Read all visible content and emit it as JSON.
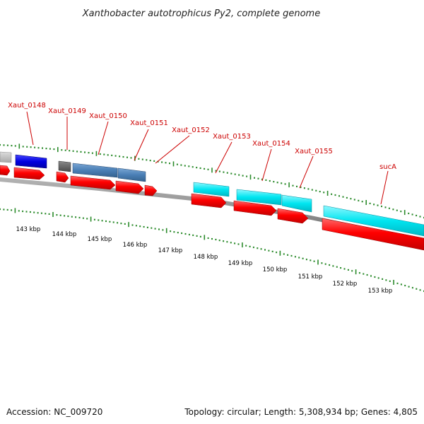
{
  "title": "Xanthobacter autotrophicus Py2, complete genome",
  "accession": "Accession: NC_009720",
  "summary": "Topology: circular; Length: 5,308,934 bp; Genes: 4,805",
  "colors": {
    "label": "#cc0000",
    "backbone": "#7a7a7a",
    "tick": "#2a8a2a",
    "cds_red": "#ff0000",
    "feature_cyan": "#00e5f0",
    "feature_blue": "#0000e0",
    "feature_steel": "#4a7fb5",
    "feature_gray": "#606060",
    "feature_lightgray": "#b8b8b8"
  },
  "scale_labels": [
    "143 kbp",
    "144 kbp",
    "145 kbp",
    "146 kbp",
    "147 kbp",
    "148 kbp",
    "149 kbp",
    "150 kbp",
    "151 kbp",
    "152 kbp",
    "153 kbp"
  ],
  "gene_labels": [
    "Xaut_0148",
    "Xaut_0149",
    "Xaut_0150",
    "Xaut_0151",
    "Xaut_0152",
    "Xaut_0153",
    "Xaut_0154",
    "Xaut_0155",
    "sucA"
  ]
}
